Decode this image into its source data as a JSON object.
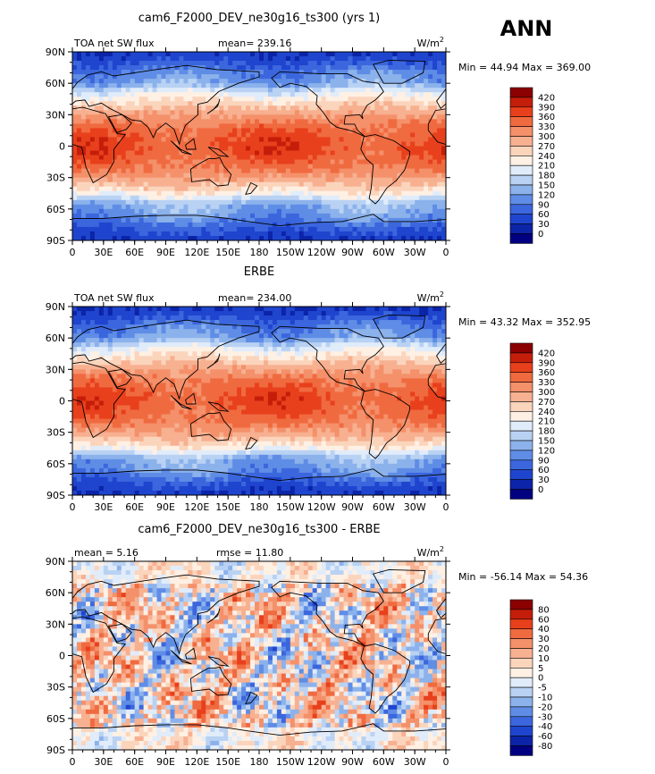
{
  "season_label": "ANN",
  "chart_data": [
    {
      "type": "heatmap",
      "title": "cam6_F2000_DEV_ne30g16_ts300 (yrs 1)",
      "variable_label": "TOA net SW flux",
      "mean_text": "mean= 239.16",
      "units": "W/m",
      "units_exp": "2",
      "minmax_text": "Min =  44.94 Max = 369.00",
      "min": 44.94,
      "max": 369.0,
      "mean": 239.16,
      "x_ticks": [
        "0",
        "30E",
        "60E",
        "90E",
        "120E",
        "150E",
        "180",
        "150W",
        "120W",
        "90W",
        "60W",
        "30W",
        "0"
      ],
      "y_ticks": [
        "90N",
        "60N",
        "30N",
        "0",
        "30S",
        "60S",
        "90S"
      ],
      "colorbar_levels": [
        "420",
        "390",
        "360",
        "330",
        "300",
        "270",
        "240",
        "210",
        "180",
        "150",
        "120",
        "90",
        "60",
        "30",
        "0"
      ],
      "colors": [
        "#8b0000",
        "#c41e0a",
        "#e8401c",
        "#f06a40",
        "#f4906a",
        "#f7b090",
        "#fbd4bc",
        "#fff0e4",
        "#e1ecfa",
        "#b9d2f3",
        "#8cb2ec",
        "#5f8de6",
        "#3b66dd",
        "#1f45cf",
        "#0b24a8",
        "#000080"
      ]
    },
    {
      "type": "heatmap",
      "title": "ERBE",
      "variable_label": "TOA net SW flux",
      "mean_text": "mean= 234.00",
      "units": "W/m",
      "units_exp": "2",
      "minmax_text": "Min =  43.32 Max = 352.95",
      "min": 43.32,
      "max": 352.95,
      "mean": 234.0,
      "x_ticks": [
        "0",
        "30E",
        "60E",
        "90E",
        "120E",
        "150E",
        "180",
        "150W",
        "120W",
        "90W",
        "60W",
        "30W",
        "0"
      ],
      "y_ticks": [
        "90N",
        "60N",
        "30N",
        "0",
        "30S",
        "60S",
        "90S"
      ],
      "colorbar_levels": [
        "420",
        "390",
        "360",
        "330",
        "300",
        "270",
        "240",
        "210",
        "180",
        "150",
        "120",
        "90",
        "60",
        "30",
        "0"
      ],
      "colors": [
        "#8b0000",
        "#c41e0a",
        "#e8401c",
        "#f06a40",
        "#f4906a",
        "#f7b090",
        "#fbd4bc",
        "#fff0e4",
        "#e1ecfa",
        "#b9d2f3",
        "#8cb2ec",
        "#5f8de6",
        "#3b66dd",
        "#1f45cf",
        "#0b24a8",
        "#000080"
      ]
    },
    {
      "type": "heatmap",
      "title": "cam6_F2000_DEV_ne30g16_ts300 - ERBE",
      "variable_label": "mean =    5.16",
      "mean_text": "rmse =   11.80",
      "units": "W/m",
      "units_exp": "2",
      "minmax_text": "Min = -56.14 Max =  54.36",
      "min": -56.14,
      "max": 54.36,
      "mean": 5.16,
      "rmse": 11.8,
      "x_ticks": [
        "0",
        "30E",
        "60E",
        "90E",
        "120E",
        "150E",
        "180",
        "150W",
        "120W",
        "90W",
        "60W",
        "30W",
        "0"
      ],
      "y_ticks": [
        "90N",
        "60N",
        "30N",
        "0",
        "30S",
        "60S",
        "90S"
      ],
      "colorbar_levels": [
        "80",
        "60",
        "40",
        "30",
        "20",
        "10",
        "5",
        "0",
        "-5",
        "-10",
        "-20",
        "-30",
        "-40",
        "-60",
        "-80"
      ],
      "colors": [
        "#8b0000",
        "#c41e0a",
        "#e8401c",
        "#f06a40",
        "#f4906a",
        "#f7b090",
        "#fbd4bc",
        "#fff0e4",
        "#e1ecfa",
        "#b9d2f3",
        "#8cb2ec",
        "#5f8de6",
        "#3b66dd",
        "#1f45cf",
        "#0b24a8",
        "#000080"
      ]
    }
  ]
}
